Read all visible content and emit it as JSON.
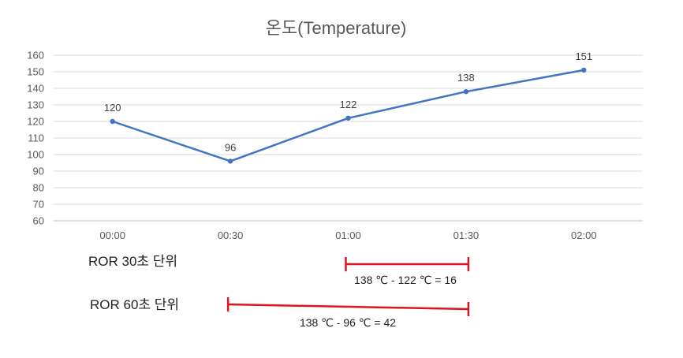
{
  "chart_data": {
    "type": "line",
    "title": "온도(Temperature)",
    "categories": [
      "00:00",
      "00:30",
      "01:00",
      "01:30",
      "02:00"
    ],
    "series": [
      {
        "values": [
          120,
          96,
          122,
          138,
          151
        ],
        "color": "#4472c4"
      }
    ],
    "data_labels": [
      "120",
      "96",
      "122",
      "138",
      "151"
    ],
    "y_ticks": [
      "60",
      "70",
      "80",
      "90",
      "100",
      "110",
      "120",
      "130",
      "140",
      "150",
      "160"
    ],
    "ylim": [
      60,
      160
    ],
    "grid": true,
    "annotations": [
      {
        "label": "ROR 30초 단위",
        "from": "01:00",
        "to": "01:30",
        "formula": "138 ℃ - 122 ℃ = 16",
        "color": "#e0141c"
      },
      {
        "label": "ROR 60초 단위",
        "from": "00:30",
        "to": "01:30",
        "formula": "138 ℃ - 96 ℃ = 42",
        "color": "#e0141c"
      }
    ]
  }
}
